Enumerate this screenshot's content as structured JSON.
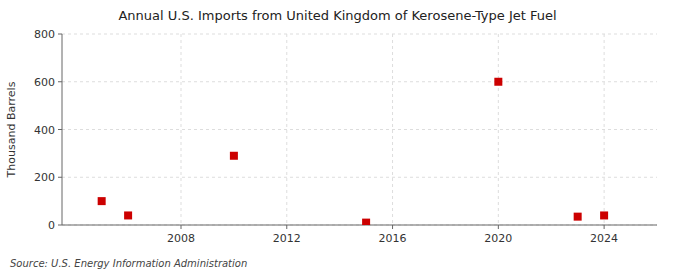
{
  "chart_data": {
    "type": "scatter",
    "title": "Annual U.S. Imports from United Kingdom of Kerosene-Type Jet Fuel",
    "ylabel": "Thousand Barrels",
    "source": "Source: U.S. Energy Information Administration",
    "x": [
      2005,
      2006,
      2010,
      2015,
      2020,
      2023,
      2024
    ],
    "values": [
      100,
      40,
      290,
      10,
      600,
      35,
      40
    ],
    "color": "#cc0000",
    "marker": "square",
    "xlim": [
      2003.5,
      2026
    ],
    "ylim": [
      0,
      800
    ],
    "xticks": [
      2008,
      2012,
      2016,
      2020,
      2024
    ],
    "yticks": [
      0,
      200,
      400,
      600,
      800
    ],
    "grid": true
  }
}
